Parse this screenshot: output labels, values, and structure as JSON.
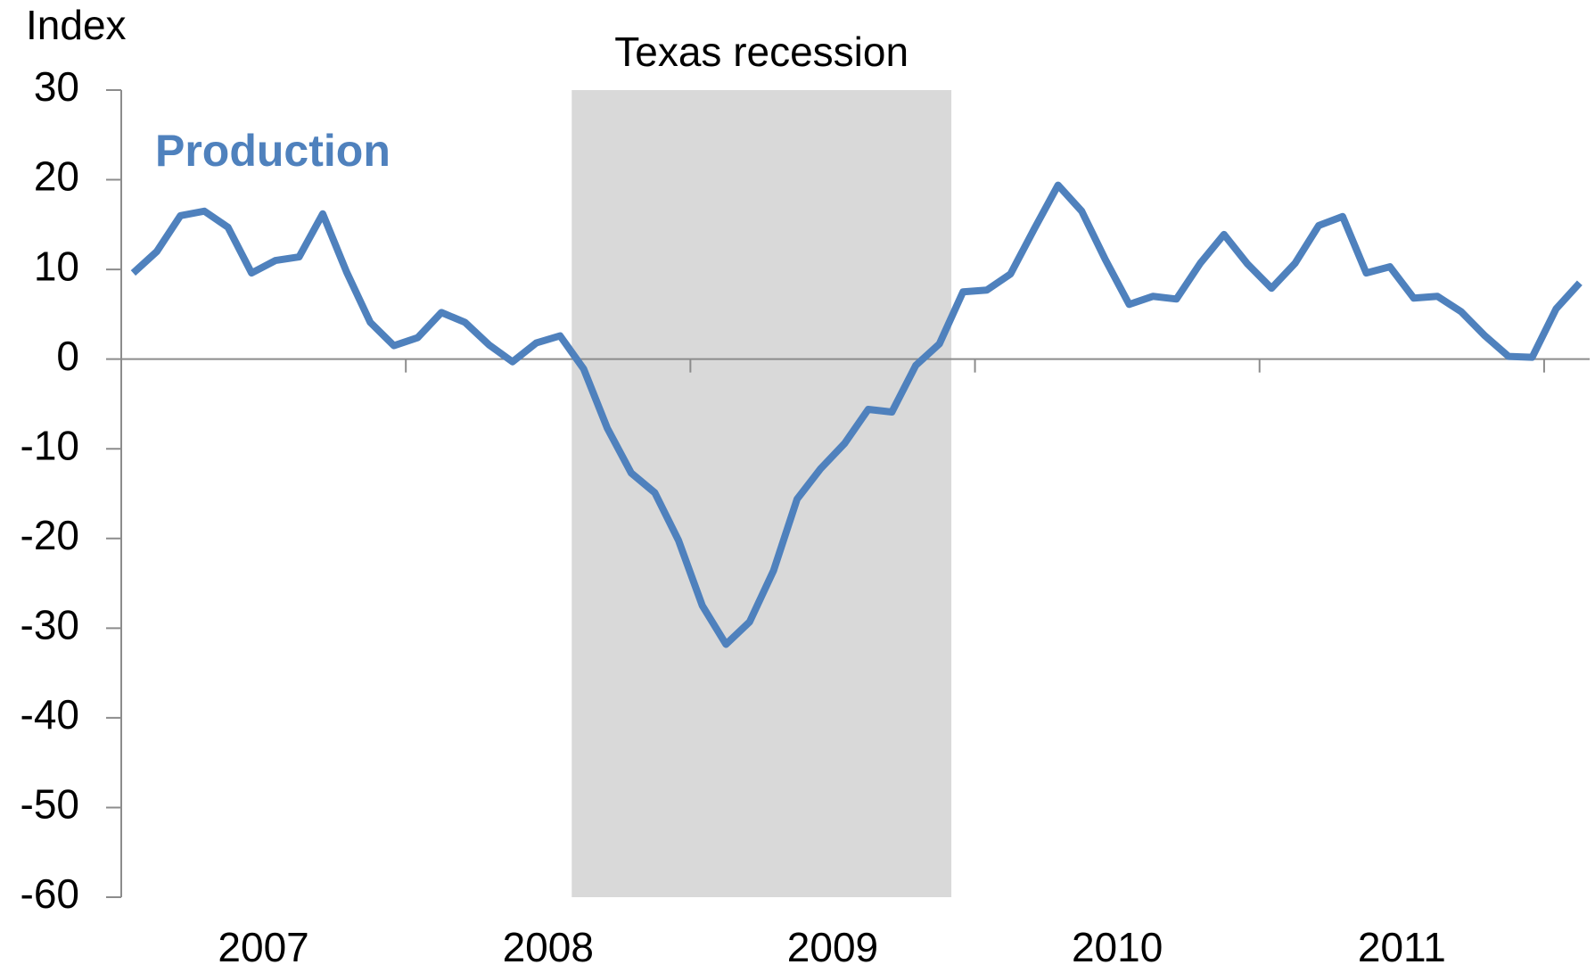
{
  "chart_data": {
    "type": "line",
    "axis_label": "Index",
    "shade": {
      "label": "Texas recession",
      "x": [
        2008.583,
        2009.917
      ],
      "color": "#d9d9d9"
    },
    "x": [
      2007.042,
      2007.125,
      2007.208,
      2007.292,
      2007.375,
      2007.458,
      2007.542,
      2007.625,
      2007.708,
      2007.792,
      2007.875,
      2007.958,
      2008.042,
      2008.125,
      2008.208,
      2008.292,
      2008.375,
      2008.458,
      2008.542,
      2008.625,
      2008.708,
      2008.792,
      2008.875,
      2008.958,
      2009.042,
      2009.125,
      2009.208,
      2009.292,
      2009.375,
      2009.458,
      2009.542,
      2009.625,
      2009.708,
      2009.792,
      2009.875,
      2009.958,
      2010.042,
      2010.125,
      2010.208,
      2010.292,
      2010.375,
      2010.458,
      2010.542,
      2010.625,
      2010.708,
      2010.792,
      2010.875,
      2010.958,
      2011.042,
      2011.125,
      2011.208,
      2011.292,
      2011.375,
      2011.458,
      2011.542,
      2011.625,
      2011.708,
      2011.792,
      2011.875,
      2011.958,
      2012.042,
      2012.125
    ],
    "series": [
      {
        "name": "Production",
        "color": "#4f81bd",
        "values": [
          9.6,
          12,
          16,
          16.5,
          14.7,
          9.6,
          11,
          11.4,
          16.2,
          9.7,
          4.1,
          1.5,
          2.4,
          5.2,
          4.1,
          1.6,
          -0.3,
          1.8,
          2.6,
          -1.1,
          -7.7,
          -12.7,
          -14.9,
          -20.2,
          -27.5,
          -31.8,
          -29.3,
          -23.6,
          -15.6,
          -12.2,
          -9.4,
          -5.6,
          -5.9,
          -0.7,
          1.7,
          7.5,
          7.7,
          9.5,
          14.5,
          19.4,
          16.5,
          11.1,
          6.1,
          7,
          6.7,
          10.7,
          13.9,
          10.6,
          7.9,
          10.7,
          14.9,
          15.9,
          9.6,
          10.3,
          6.8,
          7,
          5.3,
          2.6,
          0.3,
          0.2,
          5.6,
          8.5
        ]
      }
    ],
    "xlim": [
      2007,
      2012.16
    ],
    "xticks": [
      2008,
      2009,
      2010,
      2011,
      2012
    ],
    "year_labels": [
      2007,
      2008,
      2009,
      2010,
      2011
    ],
    "ylim": [
      -60,
      30
    ],
    "yticks": [
      -60,
      -50,
      -40,
      -30,
      -20,
      -10,
      0,
      10,
      20,
      30
    ]
  }
}
